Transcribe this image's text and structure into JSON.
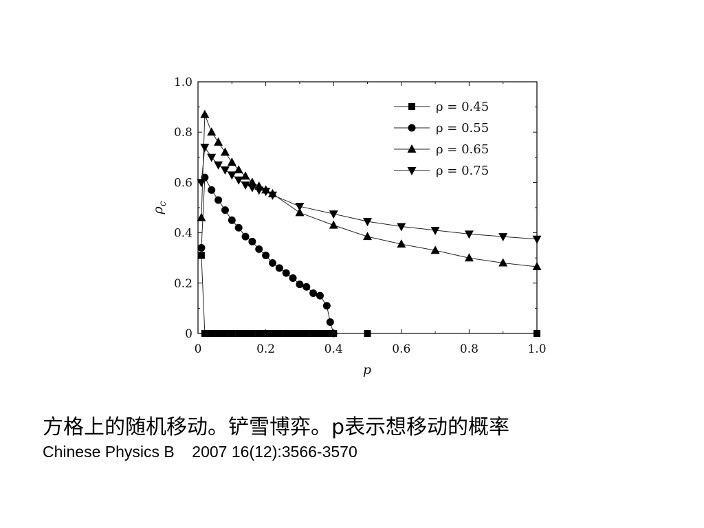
{
  "chart_data": {
    "type": "line",
    "xlabel": "p",
    "ylabel": "ρc",
    "xlim": [
      0,
      1.0
    ],
    "ylim": [
      0,
      1.0
    ],
    "x_ticks": [
      0,
      0.2,
      0.4,
      0.6,
      0.8,
      1.0
    ],
    "x_tick_labels": [
      "0",
      "0.2",
      "0.4",
      "0.6",
      "0.8",
      "1.0"
    ],
    "y_ticks": [
      0,
      0.2,
      0.4,
      0.6,
      0.8,
      1.0
    ],
    "y_tick_labels": [
      "0",
      "0.2",
      "0.4",
      "0.6",
      "0.8",
      "1.0"
    ],
    "grid": false,
    "legend_position": "top-right",
    "series": [
      {
        "name": "ρ = 0.45",
        "marker": "square",
        "x": [
          0.01,
          0.02,
          0.04,
          0.06,
          0.08,
          0.1,
          0.12,
          0.14,
          0.16,
          0.18,
          0.2,
          0.22,
          0.24,
          0.26,
          0.28,
          0.3,
          0.32,
          0.34,
          0.36,
          0.38,
          0.4,
          0.5,
          1.0
        ],
        "y": [
          0.31,
          0.0,
          0.0,
          0.0,
          0.0,
          0.0,
          0.0,
          0.0,
          0.0,
          0.0,
          0.0,
          0.0,
          0.0,
          0.0,
          0.0,
          0.0,
          0.0,
          0.0,
          0.0,
          0.0,
          0.0,
          0.0,
          0.0
        ]
      },
      {
        "name": "ρ = 0.55",
        "marker": "circle",
        "x": [
          0.01,
          0.02,
          0.04,
          0.06,
          0.08,
          0.1,
          0.12,
          0.14,
          0.16,
          0.18,
          0.2,
          0.22,
          0.24,
          0.26,
          0.28,
          0.3,
          0.32,
          0.34,
          0.36,
          0.38,
          0.39,
          0.4
        ],
        "y": [
          0.34,
          0.62,
          0.57,
          0.53,
          0.49,
          0.45,
          0.42,
          0.385,
          0.365,
          0.335,
          0.31,
          0.28,
          0.26,
          0.24,
          0.22,
          0.195,
          0.185,
          0.16,
          0.15,
          0.11,
          0.045,
          0.0
        ]
      },
      {
        "name": "ρ = 0.65",
        "marker": "triangle-up",
        "x": [
          0.01,
          0.02,
          0.04,
          0.06,
          0.08,
          0.1,
          0.12,
          0.14,
          0.16,
          0.18,
          0.2,
          0.22,
          0.3,
          0.4,
          0.5,
          0.6,
          0.7,
          0.8,
          0.9,
          1.0
        ],
        "y": [
          0.46,
          0.87,
          0.8,
          0.76,
          0.72,
          0.68,
          0.65,
          0.625,
          0.6,
          0.585,
          0.57,
          0.555,
          0.48,
          0.43,
          0.385,
          0.355,
          0.33,
          0.3,
          0.28,
          0.265
        ]
      },
      {
        "name": "ρ = 0.75",
        "marker": "triangle-down",
        "x": [
          0.01,
          0.02,
          0.04,
          0.06,
          0.08,
          0.1,
          0.12,
          0.14,
          0.16,
          0.18,
          0.2,
          0.22,
          0.3,
          0.4,
          0.5,
          0.6,
          0.7,
          0.8,
          0.9,
          1.0
        ],
        "y": [
          0.6,
          0.74,
          0.7,
          0.67,
          0.65,
          0.63,
          0.61,
          0.59,
          0.58,
          0.57,
          0.565,
          0.55,
          0.505,
          0.475,
          0.445,
          0.425,
          0.41,
          0.395,
          0.385,
          0.375
        ]
      }
    ]
  },
  "caption": {
    "line1": "方格上的随机移动。铲雪博弈。p表示想移动的概率",
    "line2": "Chinese Physics B    2007 16(12):3566-3570"
  }
}
